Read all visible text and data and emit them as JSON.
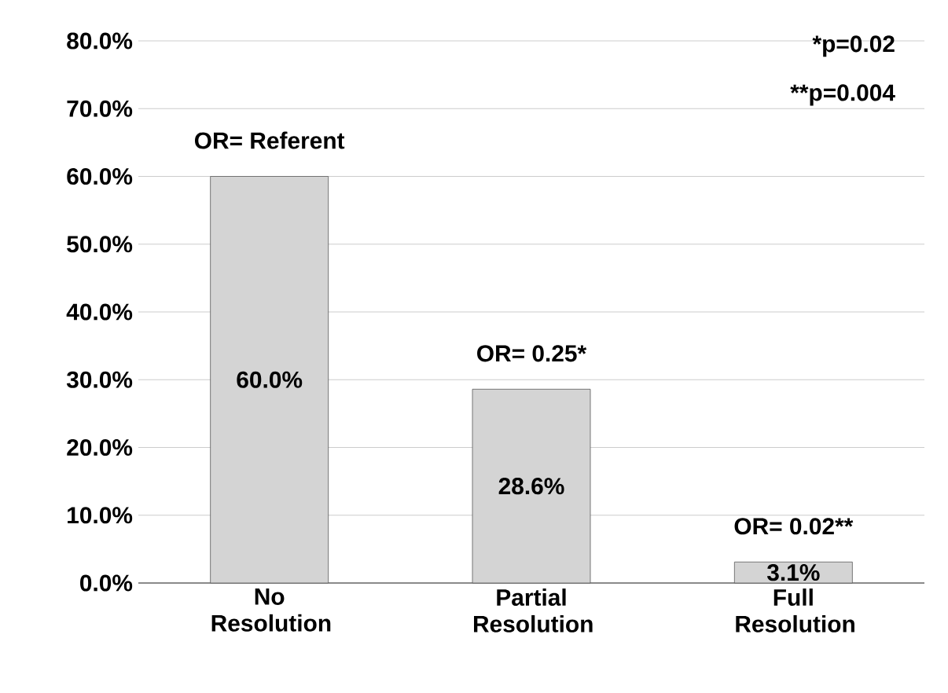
{
  "chart_data": {
    "type": "bar",
    "categories": [
      "No Resolution",
      "Partial Resolution",
      "Full Resolution"
    ],
    "values": [
      60.0,
      28.6,
      3.1
    ],
    "value_labels": [
      "60.0%",
      "28.6%",
      "3.1%"
    ],
    "color": "#d4d4d4",
    "ylim": [
      0,
      80
    ],
    "yticks": [
      {
        "value": 0,
        "label": "0.0%"
      },
      {
        "value": 10,
        "label": "10.0%"
      },
      {
        "value": 20,
        "label": "20.0%"
      },
      {
        "value": 30,
        "label": "30.0%"
      },
      {
        "value": 40,
        "label": "40.0%"
      },
      {
        "value": 50,
        "label": "50.0%"
      },
      {
        "value": 60,
        "label": "60.0%"
      },
      {
        "value": 70,
        "label": "70.0%"
      },
      {
        "value": 80,
        "label": "80.0%"
      }
    ],
    "grid": "y",
    "annotations": [
      {
        "text": "OR= Referent",
        "x": "No Resolution",
        "y": 60.0
      },
      {
        "text": "OR= 0.25*",
        "x": "Partial Resolution",
        "y": 28.6
      },
      {
        "text": "OR= 0.02**",
        "x": "Full Resolution",
        "y": 3.1
      },
      "*p=0.02",
      "**p=0.004"
    ]
  }
}
